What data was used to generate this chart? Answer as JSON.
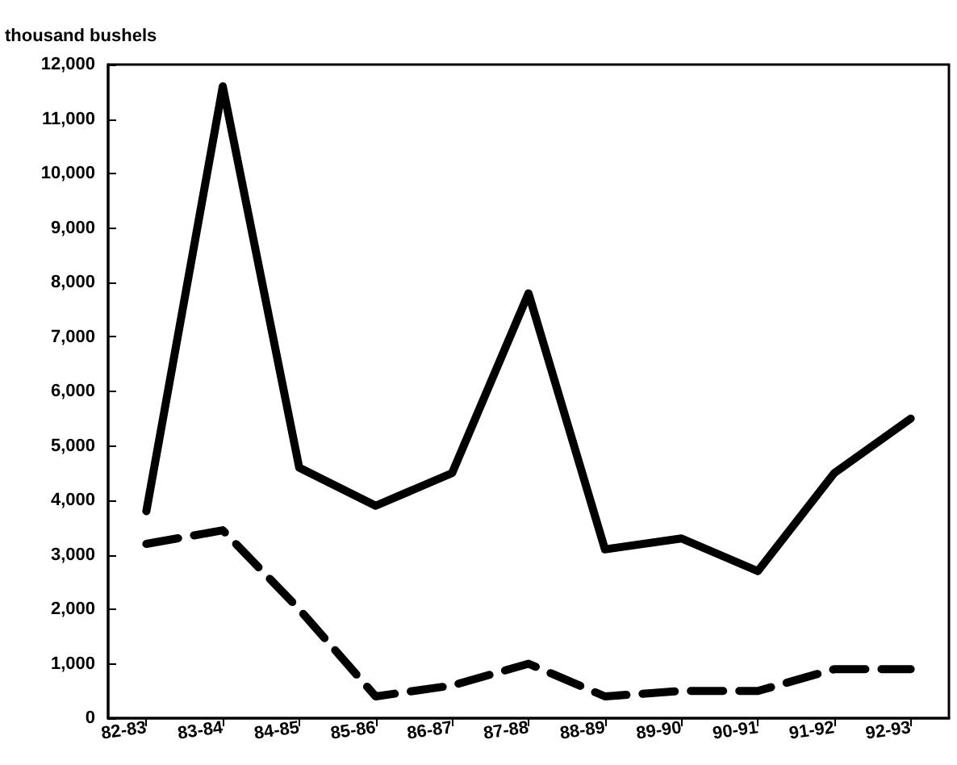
{
  "chart_data": {
    "type": "line",
    "ylabel": "thousand bushels",
    "categories": [
      "82-83",
      "83-84",
      "84-85",
      "85-86",
      "86-87",
      "87-88",
      "88-89",
      "89-90",
      "90-91",
      "91-92",
      "92-93"
    ],
    "series": [
      {
        "color": "#000000",
        "line_style": "solid",
        "values": [
          3800,
          11600,
          4600,
          3900,
          4500,
          7800,
          3100,
          3300,
          2700,
          4500,
          5500
        ]
      },
      {
        "color": "#000000",
        "line_style": "dashed",
        "values": [
          3200,
          3450,
          2000,
          400,
          600,
          1000,
          400,
          500,
          500,
          900,
          900
        ]
      }
    ],
    "ylim": [
      0,
      12000
    ],
    "yticks": [
      0,
      {
        "value": 1000,
        "label": "1,000"
      },
      {
        "value": 2000,
        "label": "2,000"
      },
      {
        "value": 3000,
        "label": "3,000"
      },
      {
        "value": 4000,
        "label": "4,000"
      },
      {
        "value": 5000,
        "label": "5,000"
      },
      {
        "value": 6000,
        "label": "6,000"
      },
      {
        "value": 7000,
        "label": "7,000"
      },
      {
        "value": 8000,
        "label": "8,000"
      },
      {
        "value": 9000,
        "label": "9,000"
      },
      {
        "value": 10000,
        "label": "10,000"
      },
      {
        "value": 11000,
        "label": "11,000"
      },
      {
        "value": 12000,
        "label": "12,000"
      }
    ],
    "grid": false,
    "marker": "none"
  }
}
